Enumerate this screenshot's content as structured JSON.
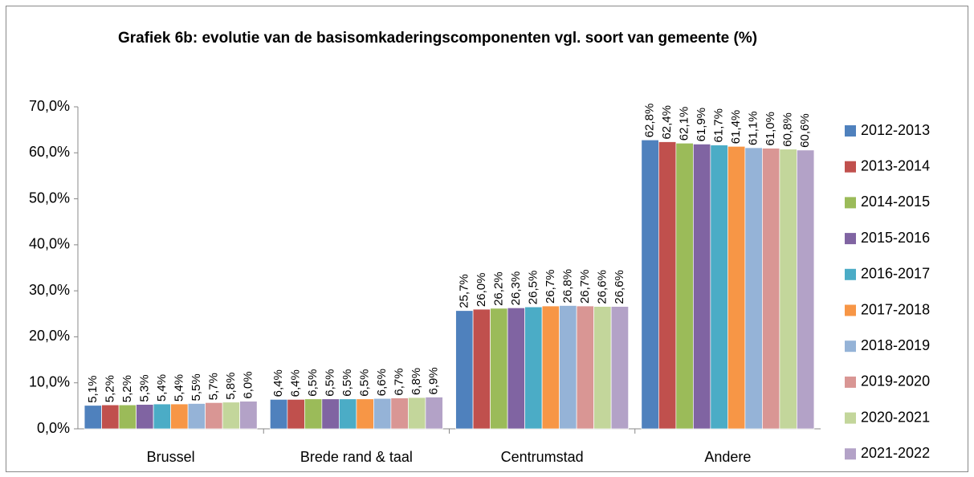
{
  "chart_data": {
    "type": "bar",
    "title": "Grafiek 6b: evolutie van de basisomkaderingscomponenten vgl. soort van gemeente (%)",
    "categories": [
      "Brussel",
      "Brede rand & taal",
      "Centrumstad",
      "Andere"
    ],
    "ylim": [
      0,
      70
    ],
    "yticks": [
      {
        "value": 0,
        "label": "0,0%"
      },
      {
        "value": 10,
        "label": "10,0%"
      },
      {
        "value": 20,
        "label": "20,0%"
      },
      {
        "value": 30,
        "label": "30,0%"
      },
      {
        "value": 40,
        "label": "40,0%"
      },
      {
        "value": 50,
        "label": "50,0%"
      },
      {
        "value": 60,
        "label": "60,0%"
      },
      {
        "value": 70,
        "label": "70,0%"
      }
    ],
    "grid": false,
    "legend": "right",
    "series": [
      {
        "name": "2012-2013",
        "color": "#4f81bd",
        "values": [
          5.1,
          6.4,
          25.7,
          62.8
        ],
        "value_labels": [
          "5,1%",
          "6,4%",
          "25,7%",
          "62,8%"
        ]
      },
      {
        "name": "2013-2014",
        "color": "#c0504d",
        "values": [
          5.2,
          6.4,
          26.0,
          62.4
        ],
        "value_labels": [
          "5,2%",
          "6,4%",
          "26,0%",
          "62,4%"
        ]
      },
      {
        "name": "2014-2015",
        "color": "#9bbb59",
        "values": [
          5.2,
          6.5,
          26.2,
          62.1
        ],
        "value_labels": [
          "5,2%",
          "6,5%",
          "26,2%",
          "62,1%"
        ]
      },
      {
        "name": "2015-2016",
        "color": "#8064a2",
        "values": [
          5.3,
          6.5,
          26.3,
          61.9
        ],
        "value_labels": [
          "5,3%",
          "6,5%",
          "26,3%",
          "61,9%"
        ]
      },
      {
        "name": "2016-2017",
        "color": "#4bacc6",
        "values": [
          5.4,
          6.5,
          26.5,
          61.7
        ],
        "value_labels": [
          "5,4%",
          "6,5%",
          "26,5%",
          "61,7%"
        ]
      },
      {
        "name": "2017-2018",
        "color": "#f79646",
        "values": [
          5.4,
          6.5,
          26.7,
          61.4
        ],
        "value_labels": [
          "5,4%",
          "6,5%",
          "26,7%",
          "61,4%"
        ]
      },
      {
        "name": "2018-2019",
        "color": "#95b3d7",
        "values": [
          5.5,
          6.6,
          26.8,
          61.1
        ],
        "value_labels": [
          "5,5%",
          "6,6%",
          "26,8%",
          "61,1%"
        ]
      },
      {
        "name": "2019-2020",
        "color": "#d99694",
        "values": [
          5.7,
          6.7,
          26.7,
          61.0
        ],
        "value_labels": [
          "5,7%",
          "6,7%",
          "26,7%",
          "61,0%"
        ]
      },
      {
        "name": "2020-2021",
        "color": "#c3d69b",
        "values": [
          5.8,
          6.8,
          26.6,
          60.8
        ],
        "value_labels": [
          "5,8%",
          "6,8%",
          "26,6%",
          "60,8%"
        ]
      },
      {
        "name": "2021-2022",
        "color": "#b3a2c7",
        "values": [
          6.0,
          6.9,
          26.6,
          60.6
        ],
        "value_labels": [
          "6,0%",
          "6,9%",
          "26,6%",
          "60,6%"
        ]
      }
    ]
  }
}
